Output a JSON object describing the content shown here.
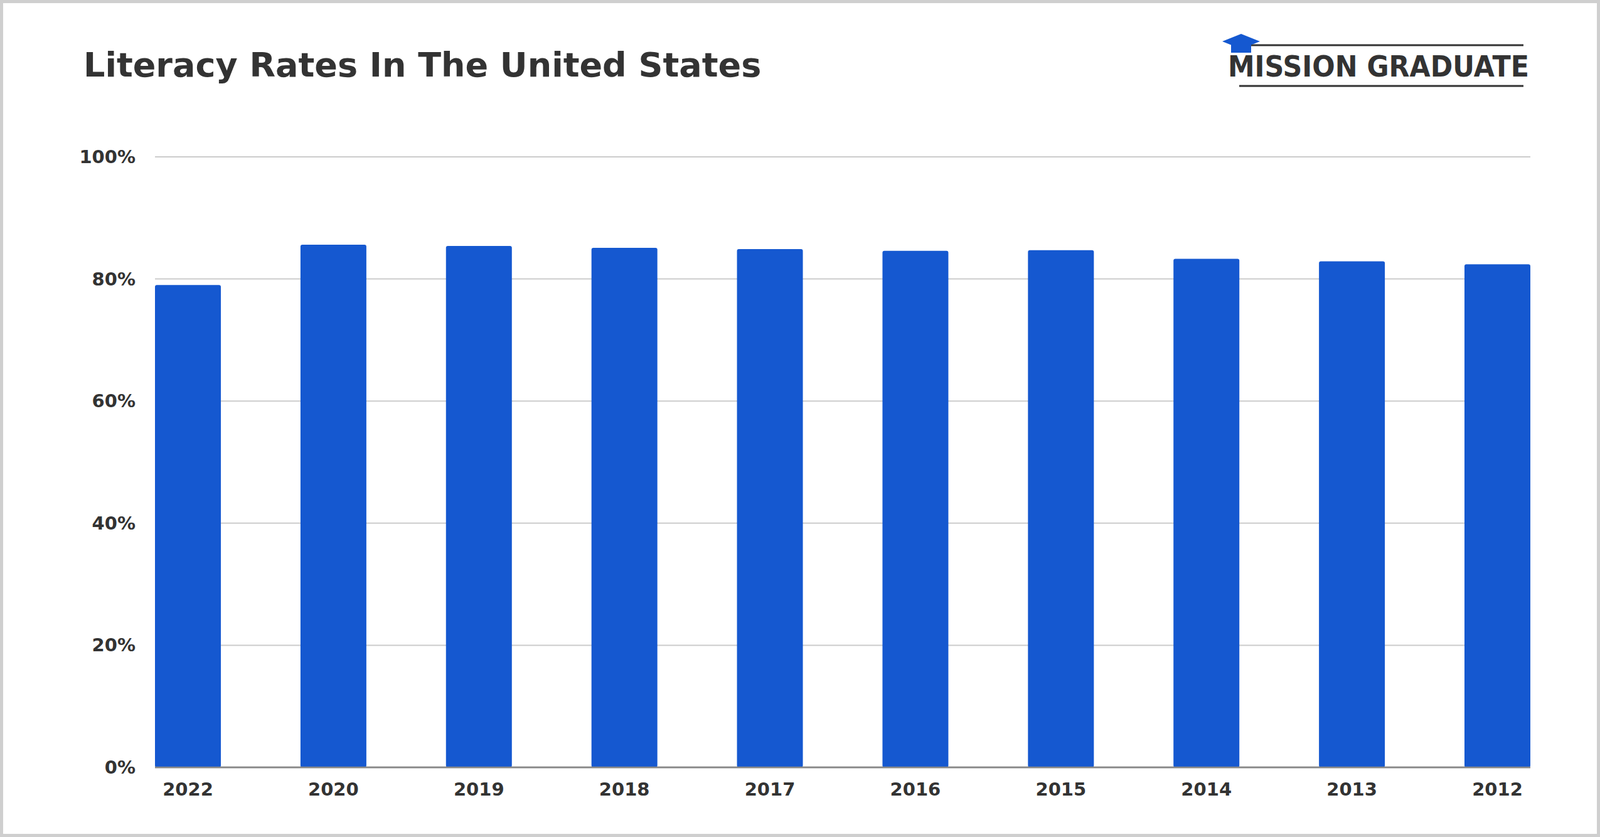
{
  "chart_data": {
    "type": "bar",
    "title": "Literacy Rates In The United States",
    "categories": [
      "2022",
      "2020",
      "2019",
      "2018",
      "2017",
      "2016",
      "2015",
      "2014",
      "2013",
      "2012"
    ],
    "values": [
      79,
      85.6,
      85.4,
      85.1,
      84.9,
      84.6,
      84.7,
      83.3,
      82.9,
      82.4
    ],
    "color": "#1558d0",
    "ylim": [
      0,
      100
    ],
    "yticks": [
      {
        "value": 0,
        "label": "0%"
      },
      {
        "value": 20,
        "label": "20%"
      },
      {
        "value": 40,
        "label": "40%"
      },
      {
        "value": 60,
        "label": "60%"
      },
      {
        "value": 80,
        "label": "80%"
      },
      {
        "value": 100,
        "label": "100%"
      }
    ],
    "grid": true
  },
  "logo": {
    "text": "MISSION GRADUATE"
  }
}
